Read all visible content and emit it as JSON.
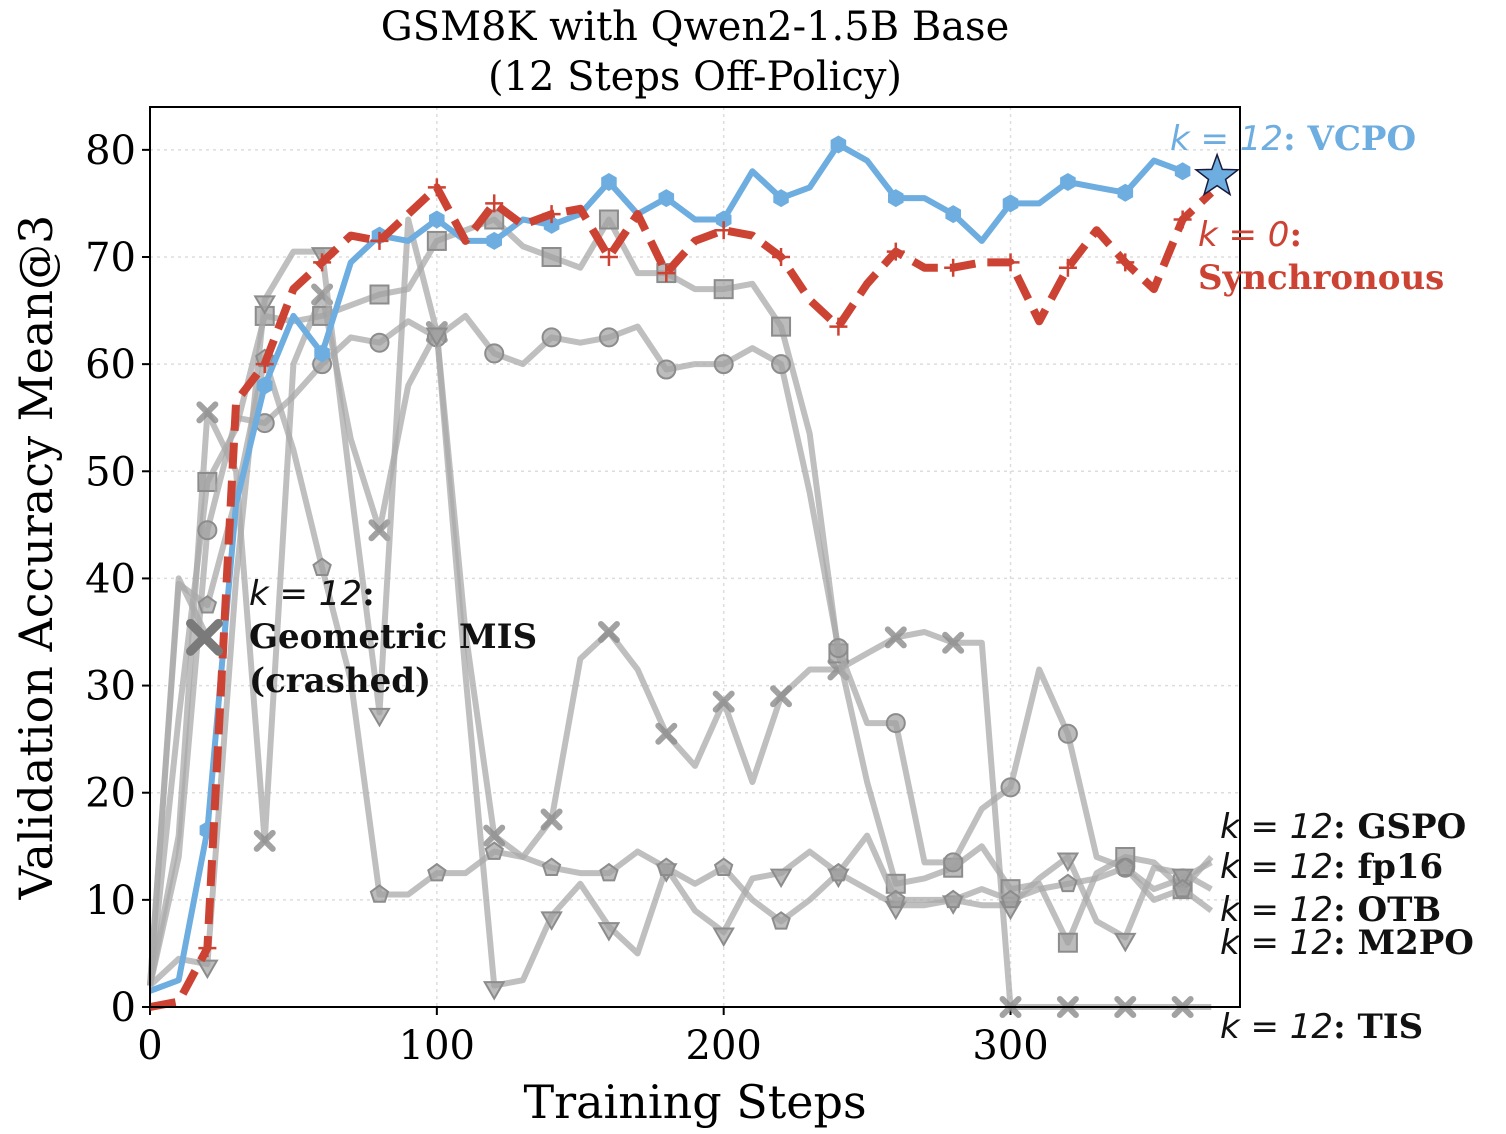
{
  "chart_data": {
    "type": "line",
    "title_lines": [
      "GSM8K with Qwen2-1.5B Base",
      "(12 Steps Off-Policy)"
    ],
    "xlabel": "Training Steps",
    "ylabel": "Validation Accuracy Mean@3",
    "xlim": [
      0,
      380
    ],
    "ylim": [
      0,
      84
    ],
    "xticks": [
      0,
      100,
      200,
      300
    ],
    "yticks": [
      0,
      10,
      20,
      30,
      40,
      50,
      60,
      70,
      80
    ],
    "xtick_labels": [
      "0",
      "100",
      "200",
      "300"
    ],
    "ytick_labels": [
      "0",
      "10",
      "20",
      "30",
      "40",
      "50",
      "60",
      "70",
      "80"
    ],
    "grid": true,
    "colors": {
      "vcpo": "#6daddf",
      "sync": "#cc4233",
      "baseline": "#a9a9a9",
      "baseline_marker": "#8c8c8c",
      "crash": "#7a7a7a"
    },
    "series": [
      {
        "name": "k=12: VCPO",
        "color": "#6daddf",
        "marker": "hexagon",
        "x": [
          0,
          10,
          20,
          30,
          40,
          50,
          60,
          70,
          80,
          90,
          100,
          110,
          120,
          130,
          140,
          150,
          160,
          170,
          180,
          190,
          200,
          210,
          220,
          230,
          240,
          250,
          260,
          270,
          280,
          290,
          300,
          310,
          320,
          330,
          340,
          350,
          360
        ],
        "y": [
          1.5,
          2.5,
          16.5,
          47,
          58,
          64.5,
          61,
          69.5,
          72,
          71.5,
          73.5,
          71.5,
          71.5,
          73.5,
          73,
          74,
          77,
          74,
          75.5,
          73.5,
          73.5,
          78,
          75.5,
          76.5,
          80.5,
          79,
          75.5,
          75.5,
          74,
          71.5,
          75,
          75,
          77,
          76.5,
          76,
          79,
          78
        ]
      },
      {
        "name": "k=0: Synchronous",
        "color": "#cc4233",
        "marker": "plus",
        "dashed": true,
        "x": [
          0,
          10,
          20,
          30,
          40,
          50,
          60,
          70,
          80,
          90,
          100,
          110,
          120,
          130,
          140,
          150,
          160,
          170,
          180,
          190,
          200,
          210,
          220,
          230,
          240,
          250,
          260,
          270,
          280,
          290,
          300,
          310,
          320,
          330,
          340,
          350,
          360,
          370
        ],
        "y": [
          0,
          0.5,
          5.5,
          56.5,
          60,
          67,
          69.5,
          72,
          71.5,
          74,
          76.5,
          71.5,
          75,
          73,
          74,
          74.5,
          70,
          74,
          68.5,
          71.5,
          72.5,
          72,
          70,
          66,
          63.5,
          67.5,
          70.5,
          69,
          69,
          69.5,
          69.5,
          64,
          69,
          72.5,
          69.5,
          67,
          73.5,
          76
        ]
      },
      {
        "name": "k=12: GSPO",
        "color": "#a9a9a9",
        "marker": "x",
        "x": [
          0,
          10,
          20,
          30,
          40,
          50,
          60,
          70,
          80,
          90,
          100,
          110,
          120,
          130,
          140,
          150,
          160,
          170,
          180,
          190,
          200,
          210,
          220,
          230,
          240,
          250,
          260,
          270,
          280,
          290,
          300,
          310,
          320,
          330,
          340,
          350,
          360,
          370
        ],
        "y": [
          2,
          16,
          55.5,
          50,
          15.5,
          60,
          66.5,
          53,
          44.5,
          58,
          63,
          35,
          16,
          14,
          17.5,
          32.5,
          35,
          31.5,
          25.5,
          22.5,
          28.5,
          21,
          29,
          31.5,
          31.5,
          33,
          34.5,
          35,
          34,
          34,
          0,
          0,
          0,
          0,
          0,
          0,
          0,
          0
        ]
      },
      {
        "name": "k=12: fp16",
        "color": "#a9a9a9",
        "marker": "square",
        "x": [
          0,
          10,
          20,
          30,
          40,
          50,
          60,
          70,
          80,
          90,
          100,
          110,
          120,
          130,
          140,
          150,
          160,
          170,
          180,
          190,
          200,
          210,
          220,
          230,
          240,
          250,
          260,
          270,
          280,
          290,
          300,
          310,
          320,
          330,
          340,
          350,
          360,
          370
        ],
        "y": [
          2,
          27,
          49,
          54,
          64.5,
          64,
          64.5,
          65.5,
          66.5,
          67,
          71.5,
          72.5,
          73.5,
          71,
          70,
          69,
          73.5,
          68.5,
          68.5,
          67,
          67,
          67.5,
          63.5,
          53.5,
          33,
          21,
          11.5,
          12,
          13,
          15,
          11,
          11.5,
          6,
          12.5,
          14,
          13.5,
          11,
          14
        ]
      },
      {
        "name": "k=12: OTB",
        "color": "#a9a9a9",
        "marker": "circle",
        "x": [
          0,
          10,
          20,
          30,
          40,
          50,
          60,
          70,
          80,
          90,
          100,
          110,
          120,
          130,
          140,
          150,
          160,
          170,
          180,
          190,
          200,
          210,
          220,
          230,
          240,
          250,
          260,
          270,
          280,
          290,
          300,
          310,
          320,
          330,
          340,
          350,
          360,
          370
        ],
        "y": [
          2,
          14,
          44.5,
          55,
          54.5,
          57,
          60,
          62.5,
          62,
          64,
          62.5,
          64.5,
          61,
          60,
          62.5,
          62,
          62.5,
          63.5,
          59.5,
          60,
          60,
          61.5,
          60,
          48,
          33.5,
          26.5,
          26.5,
          13.5,
          13.5,
          18.5,
          20.5,
          31.5,
          25.5,
          14,
          13,
          11,
          12,
          13.5
        ]
      },
      {
        "name": "k=12: M2PO",
        "color": "#a9a9a9",
        "marker": "triangle",
        "x": [
          0,
          10,
          20,
          30,
          40,
          50,
          60,
          70,
          80,
          90,
          100,
          110,
          120,
          130,
          140,
          150,
          160,
          170,
          180,
          190,
          200,
          210,
          220,
          230,
          240,
          250,
          260,
          270,
          280,
          290,
          300,
          310,
          320,
          330,
          340,
          350,
          360,
          370
        ],
        "y": [
          2,
          4.5,
          4,
          40,
          66,
          70.5,
          70.5,
          48.5,
          27.5,
          73.5,
          63,
          31,
          2,
          2.5,
          8.5,
          11.5,
          7.5,
          5,
          13,
          9,
          7,
          12,
          12.5,
          14.5,
          12.5,
          11,
          9.5,
          9.5,
          10,
          9.5,
          9.5,
          12,
          14,
          8,
          6.5,
          13,
          12.5,
          11
        ]
      },
      {
        "name": "k=12: TIS",
        "color": "#a9a9a9",
        "marker": "pentagon",
        "x": [
          0,
          10,
          20,
          30,
          40,
          50,
          60,
          70,
          80,
          90,
          100,
          110,
          120,
          130,
          140,
          150,
          160,
          170,
          180,
          190,
          200,
          210,
          220,
          230,
          240,
          250,
          260,
          270,
          280,
          290,
          300,
          310,
          320,
          330,
          340,
          350,
          360,
          370
        ],
        "y": [
          2,
          39.5,
          37.5,
          47.5,
          60.5,
          52,
          41,
          30.5,
          10.5,
          10.5,
          12.5,
          12.5,
          14.5,
          14,
          13,
          12.5,
          12.5,
          14.5,
          13,
          11.5,
          13,
          10,
          8,
          10,
          12.5,
          16,
          10,
          10,
          10,
          11,
          10,
          11,
          11.5,
          12,
          13,
          10,
          11,
          9
        ]
      },
      {
        "name": "k=12: Geometric MIS (crashed)",
        "color": "#a9a9a9",
        "marker": "none",
        "x": [
          0,
          10,
          20
        ],
        "y": [
          2,
          40,
          34.5
        ]
      }
    ],
    "crash_marker": {
      "x": 19,
      "y": 34.5
    },
    "end_marker": {
      "series": "k=12: VCPO",
      "x": 372,
      "y": 77.5,
      "shape": "star"
    },
    "annotations": {
      "vcpo": {
        "k": "k = 12",
        "label": ": VCPO"
      },
      "sync": {
        "k": "k = 0",
        "label": ":",
        "label2": "Synchronous"
      },
      "mis": {
        "k": "k = 12",
        "label": ":",
        "label2": "Geometric MIS",
        "label3": "(crashed)"
      },
      "gspo": {
        "k": "k = 12",
        "label": ": GSPO"
      },
      "fp16": {
        "k": "k = 12",
        "label": ": fp16"
      },
      "otb": {
        "k": "k = 12",
        "label": ": OTB"
      },
      "m2po": {
        "k": "k = 12",
        "label": ": M2PO"
      },
      "tis": {
        "k": "k = 12",
        "label": ": TIS"
      }
    }
  }
}
